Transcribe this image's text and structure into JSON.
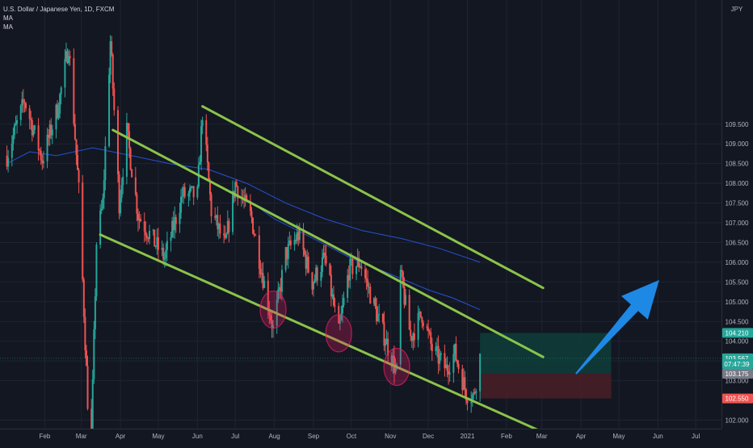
{
  "header": {
    "symbol_line": "U.S. Dollar / Japanese Yen, 1D, FXCM",
    "indicators": [
      "MA",
      "MA"
    ],
    "currency": "JPY"
  },
  "colors": {
    "background": "#131722",
    "grid": "#1f2433",
    "up_candle": "#26a69a",
    "down_candle": "#ef5350",
    "channel": "#8bc34a",
    "moving_average": "#2962ff",
    "target_zone": "#0e3d3a",
    "stop_zone": "#4a1f26",
    "arrow": "#1e88e5",
    "highlight_circle": "#e91e63"
  },
  "chart_data": {
    "type": "candlestick",
    "title": "",
    "x_ticks": [
      "Feb",
      "Mar",
      "Apr",
      "May",
      "Jun",
      "Jul",
      "Aug",
      "Sep",
      "Oct",
      "Nov",
      "Dec",
      "2021",
      "Feb",
      "Mar",
      "Apr",
      "May",
      "Jun",
      "Jul"
    ],
    "y_ticks": [
      "109.500",
      "109.000",
      "108.500",
      "108.000",
      "107.500",
      "107.000",
      "106.500",
      "106.000",
      "105.500",
      "105.000",
      "104.500",
      "104.000",
      "103.500",
      "103.000",
      "102.000"
    ],
    "ylim": [
      101.6,
      109.85
    ],
    "price_labels": [
      {
        "label": "104.210",
        "value": 104.21,
        "color": "#26a69a"
      },
      {
        "label": "103.567",
        "value": 103.567,
        "color": "#26a69a"
      },
      {
        "label": "07:47:39",
        "value": 103.42,
        "color": "#26a69a"
      },
      {
        "label": "103.175",
        "value": 103.175,
        "color": "#787b86"
      },
      {
        "label": "102.550",
        "value": 102.55,
        "color": "#ef5350"
      }
    ],
    "price_path": [
      [
        "2020-01-02",
        108.7
      ],
      [
        "2020-01-16",
        110.1
      ],
      [
        "2020-01-30",
        108.6
      ],
      [
        "2020-02-12",
        110.0
      ],
      [
        "2020-02-20",
        111.5
      ],
      [
        "2020-02-28",
        107.8
      ],
      [
        "2020-03-06",
        102.5
      ],
      [
        "2020-03-09",
        101.6
      ],
      [
        "2020-03-13",
        106.5
      ],
      [
        "2020-03-18",
        107.5
      ],
      [
        "2020-03-24",
        111.6
      ],
      [
        "2020-03-31",
        107.5
      ],
      [
        "2020-04-06",
        109.3
      ],
      [
        "2020-04-15",
        107.2
      ],
      [
        "2020-04-28",
        106.5
      ],
      [
        "2020-05-06",
        106.1
      ],
      [
        "2020-05-20",
        107.7
      ],
      [
        "2020-06-01",
        107.7
      ],
      [
        "2020-06-05",
        109.8
      ],
      [
        "2020-06-12",
        107.3
      ],
      [
        "2020-06-23",
        106.4
      ],
      [
        "2020-07-01",
        108.0
      ],
      [
        "2020-07-14",
        107.1
      ],
      [
        "2020-07-31",
        104.3
      ],
      [
        "2020-08-10",
        106.2
      ],
      [
        "2020-08-20",
        106.7
      ],
      [
        "2020-08-31",
        105.5
      ],
      [
        "2020-09-10",
        106.1
      ],
      [
        "2020-09-21",
        104.2
      ],
      [
        "2020-09-29",
        105.8
      ],
      [
        "2020-10-08",
        106.0
      ],
      [
        "2020-10-21",
        104.7
      ],
      [
        "2020-11-06",
        103.2
      ],
      [
        "2020-11-09",
        105.7
      ],
      [
        "2020-11-17",
        104.1
      ],
      [
        "2020-11-26",
        104.7
      ],
      [
        "2020-12-04",
        103.8
      ],
      [
        "2020-12-15",
        103.3
      ],
      [
        "2020-12-22",
        103.7
      ],
      [
        "2020-12-31",
        102.7
      ],
      [
        "2021-01-06",
        102.6
      ],
      [
        "2021-01-11",
        103.6
      ]
    ],
    "moving_average_series": [
      {
        "points": [
          [
            "2020-01-02",
            108.5
          ],
          [
            "2020-01-20",
            108.8
          ],
          [
            "2020-02-10",
            108.7
          ],
          [
            "2020-03-10",
            108.9
          ],
          [
            "2020-04-10",
            108.7
          ],
          [
            "2020-05-10",
            108.5
          ],
          [
            "2020-06-10",
            108.35
          ],
          [
            "2020-07-10",
            108.0
          ],
          [
            "2020-08-10",
            107.5
          ],
          [
            "2020-09-10",
            107.1
          ],
          [
            "2020-10-10",
            106.8
          ],
          [
            "2020-11-10",
            106.6
          ],
          [
            "2020-12-10",
            106.35
          ],
          [
            "2021-01-11",
            106.0
          ]
        ]
      },
      {
        "points": [
          [
            "2020-07-10",
            107.6
          ],
          [
            "2020-08-01",
            107.1
          ],
          [
            "2020-09-01",
            106.6
          ],
          [
            "2020-10-01",
            106.1
          ],
          [
            "2020-11-01",
            105.7
          ],
          [
            "2020-12-01",
            105.3
          ],
          [
            "2020-12-20",
            105.1
          ],
          [
            "2021-01-11",
            104.8
          ]
        ]
      }
    ],
    "channel_lines": [
      {
        "from": [
          "2020-03-26",
          109.35
        ],
        "to": [
          "2021-03-02",
          103.6
        ]
      },
      {
        "from": [
          "2020-06-05",
          109.95
        ],
        "to": [
          "2021-03-02",
          105.35
        ]
      },
      {
        "from": [
          "2020-03-16",
          106.7
        ],
        "to": [
          "2021-02-26",
          101.75
        ]
      }
    ],
    "highlight_circles": [
      [
        "2020-07-31",
        104.8
      ],
      [
        "2020-09-21",
        104.2
      ],
      [
        "2020-11-06",
        103.35
      ]
    ],
    "target_zone": {
      "from": "2021-01-11",
      "to": "2021-04-25",
      "top": 104.21,
      "bottom": 103.175
    },
    "stop_zone": {
      "from": "2021-01-11",
      "to": "2021-04-25",
      "top": 103.175,
      "bottom": 102.55
    },
    "projection_arrow": {
      "from": [
        "2021-03-28",
        103.175
      ],
      "to": [
        "2021-06-02",
        105.55
      ]
    },
    "legend": "top-left",
    "grid": true
  }
}
